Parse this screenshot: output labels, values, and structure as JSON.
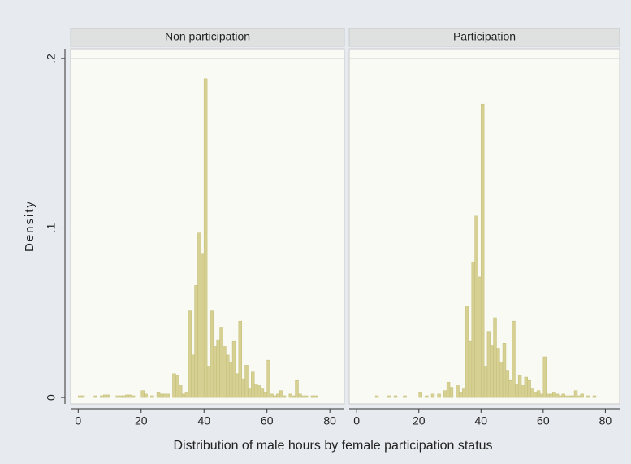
{
  "y_label": "Density",
  "x_label": "Distribution of male hours by female participation status",
  "chart_data": [
    {
      "type": "histogram",
      "title": "Non participation",
      "color": "#d6d193",
      "bins": [
        0,
        1,
        2,
        3,
        4,
        5,
        6,
        7,
        8,
        9,
        10,
        11,
        12,
        13,
        14,
        15,
        16,
        17,
        18,
        19,
        20,
        21,
        22,
        23,
        24,
        25,
        26,
        27,
        28,
        29,
        30,
        31,
        32,
        33,
        34,
        35,
        36,
        37,
        38,
        39,
        40,
        41,
        42,
        43,
        44,
        45,
        46,
        47,
        48,
        49,
        50,
        51,
        52,
        53,
        54,
        55,
        56,
        57,
        58,
        59,
        60,
        61,
        62,
        63,
        64,
        65,
        66,
        67,
        68,
        69,
        70,
        71,
        72,
        73,
        74,
        75,
        76,
        77,
        78,
        79,
        80
      ],
      "values": [
        0.001,
        0.001,
        0,
        0,
        0,
        0.001,
        0,
        0.001,
        0.0015,
        0.0015,
        0,
        0,
        0.001,
        0.001,
        0.001,
        0.0015,
        0.0015,
        0.001,
        0,
        0,
        0.004,
        0.002,
        0,
        0.001,
        0,
        0.003,
        0.002,
        0.002,
        0.002,
        0,
        0.014,
        0.013,
        0.007,
        0.002,
        0.003,
        0.051,
        0.025,
        0.066,
        0.097,
        0.085,
        0.188,
        0.018,
        0.051,
        0.03,
        0.034,
        0.041,
        0.03,
        0.025,
        0.021,
        0.033,
        0.014,
        0.045,
        0.011,
        0.019,
        0.005,
        0.015,
        0.008,
        0.007,
        0.005,
        0.003,
        0.022,
        0.002,
        0.001,
        0.002,
        0.004,
        0.001,
        0,
        0.002,
        0.001,
        0.01,
        0.002,
        0.001,
        0.001,
        0,
        0.001,
        0.001,
        0,
        0,
        0,
        0
      ],
      "xlim": [
        -2.4,
        84.6
      ],
      "xticks": [
        0,
        20,
        40,
        60,
        80
      ],
      "ylim": [
        -0.0038,
        0.2057
      ],
      "yticks": [
        0,
        {
          "value": 0.1,
          "label": ".1"
        },
        {
          "value": 0.2,
          "label": ".2"
        }
      ],
      "grid": true
    },
    {
      "type": "histogram",
      "title": "Participation",
      "color": "#d6d193",
      "bins": [
        0,
        1,
        2,
        3,
        4,
        5,
        6,
        7,
        8,
        9,
        10,
        11,
        12,
        13,
        14,
        15,
        16,
        17,
        18,
        19,
        20,
        21,
        22,
        23,
        24,
        25,
        26,
        27,
        28,
        29,
        30,
        31,
        32,
        33,
        34,
        35,
        36,
        37,
        38,
        39,
        40,
        41,
        42,
        43,
        44,
        45,
        46,
        47,
        48,
        49,
        50,
        51,
        52,
        53,
        54,
        55,
        56,
        57,
        58,
        59,
        60,
        61,
        62,
        63,
        64,
        65,
        66,
        67,
        68,
        69,
        70,
        71,
        72,
        73,
        74,
        75,
        76,
        77,
        78,
        79,
        80
      ],
      "values": [
        0,
        0,
        0,
        0,
        0,
        0,
        0.001,
        0,
        0,
        0,
        0.001,
        0,
        0.001,
        0,
        0,
        0.001,
        0,
        0,
        0,
        0,
        0.003,
        0,
        0.001,
        0,
        0.002,
        0,
        0.002,
        0,
        0.004,
        0.009,
        0.006,
        0,
        0.007,
        0.003,
        0.005,
        0.054,
        0.033,
        0.08,
        0.107,
        0.071,
        0.173,
        0.018,
        0.039,
        0.031,
        0.047,
        0.029,
        0.021,
        0.032,
        0.016,
        0.01,
        0.045,
        0.008,
        0.013,
        0.007,
        0.012,
        0.01,
        0.005,
        0.003,
        0.004,
        0.002,
        0.024,
        0.002,
        0.002,
        0.003,
        0.002,
        0.001,
        0.002,
        0.001,
        0.001,
        0.001,
        0.004,
        0.001,
        0.002,
        0,
        0.001,
        0,
        0.001,
        0,
        0,
        0
      ],
      "xlim": [
        -2.4,
        84.6
      ],
      "xticks": [
        0,
        20,
        40,
        60,
        80
      ],
      "ylim": [
        -0.0038,
        0.2057
      ],
      "yticks": [
        0,
        {
          "value": 0.1,
          "label": ".1"
        },
        {
          "value": 0.2,
          "label": ".2"
        }
      ],
      "grid": true
    }
  ]
}
